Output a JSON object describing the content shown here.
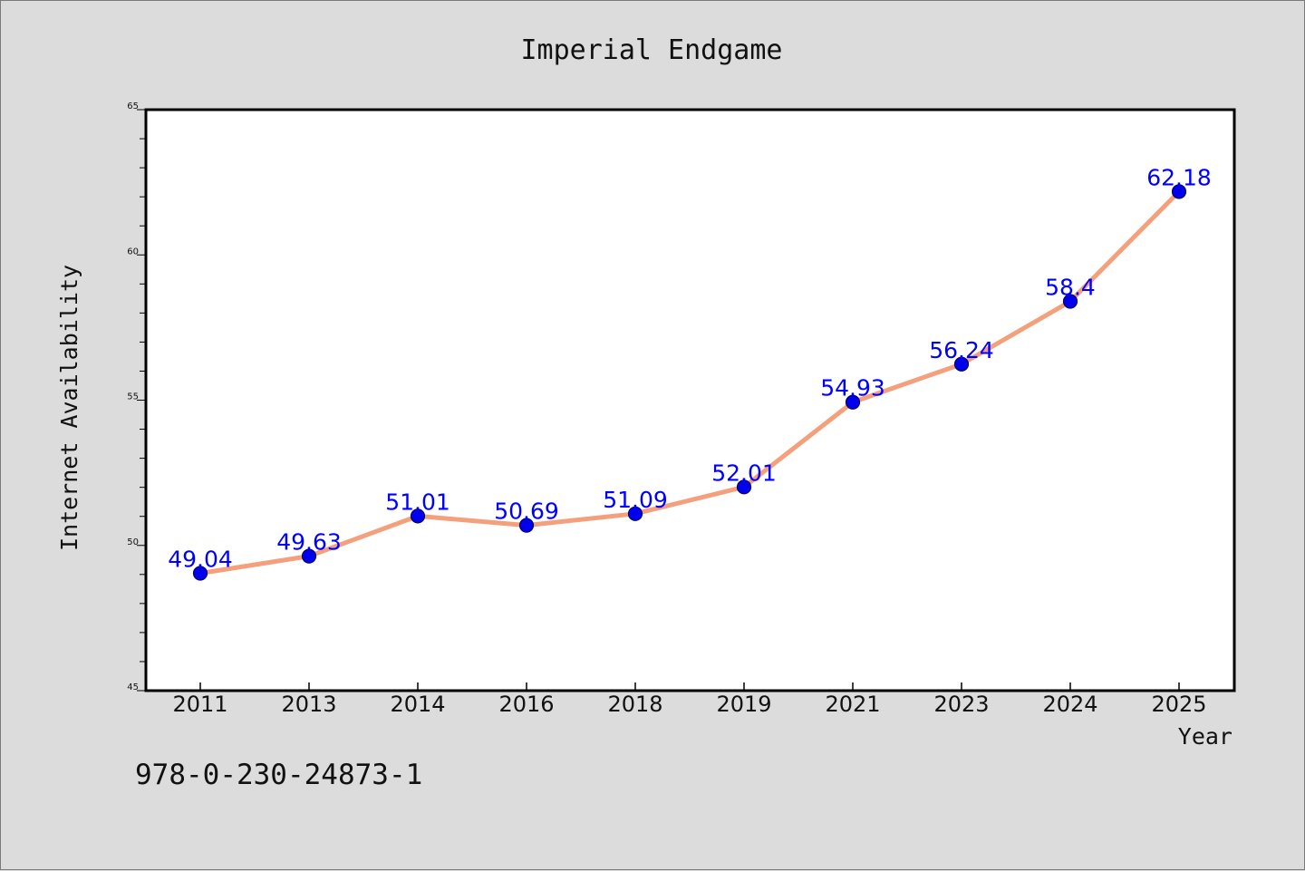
{
  "isbn": "978-0-230-24873-1",
  "colors": {
    "background": "#dcdcdc",
    "plot_background": "#ffffff",
    "line": "#f4a07c",
    "marker": "#0000ee",
    "marker_edge": "#000066",
    "data_label": "#0000ff",
    "axis": "#000000"
  },
  "chart_data": {
    "type": "line",
    "title": "Imperial Endgame",
    "xlabel": "Year",
    "ylabel": "Internet Availability",
    "categories": [
      "2011",
      "2013",
      "2014",
      "2016",
      "2018",
      "2019",
      "2021",
      "2023",
      "2024",
      "2025"
    ],
    "series": [
      {
        "values": [
          49.04,
          49.63,
          51.01,
          50.69,
          51.09,
          52.01,
          54.93,
          56.24,
          58.4,
          62.18
        ]
      }
    ],
    "data_labels": [
      "49.04",
      "49.63",
      "51.01",
      "50.69",
      "51.09",
      "52.01",
      "54.93",
      "56.24",
      "58.4",
      "62.18"
    ],
    "ylim": [
      45,
      65
    ],
    "yticks": [
      45,
      50,
      55,
      60,
      65
    ],
    "grid": false,
    "legend": "none"
  }
}
